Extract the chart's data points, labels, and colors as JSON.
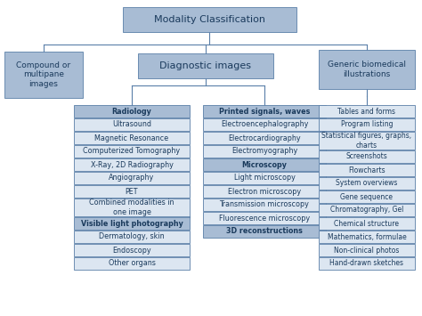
{
  "title": "Modality Classification",
  "background": "#ffffff",
  "box_fill_dark": "#a8bcd4",
  "box_fill_light": "#dce6f1",
  "box_edge": "#5a7fa8",
  "line_color": "#5a7fa8",
  "font_color": "#1a3a5c",
  "categories": [
    "Compound or\nmultipane\nimages",
    "Diagnostic images",
    "Generic biomedical\nillustrations"
  ],
  "diag_left_header": "Radiology",
  "diag_left_items": [
    "Ultrasound",
    "Magnetic Resonance",
    "Computerized Tomography",
    "X-Ray, 2D Radiography",
    "Angiography",
    "PET",
    "Combined modalities in\none image"
  ],
  "diag_left_header2": "Visible light photography",
  "diag_left_items2": [
    "Dermatology, skin",
    "Endoscopy",
    "Other organs"
  ],
  "diag_right_header1": "Printed signals, waves",
  "diag_right_items1": [
    "Electroencephalography",
    "Electrocardiography",
    "Electromyography"
  ],
  "diag_right_header2": "Microscopy",
  "diag_right_items2": [
    "Light microscopy",
    "Electron microscopy",
    "Transmission microscopy",
    "Fluorescence microscopy"
  ],
  "diag_right_header3": "3D reconstructions",
  "generic_items": [
    "Tables and forms",
    "Program listing",
    "Statistical figures, graphs,\ncharts",
    "Screenshots",
    "Flowcharts",
    "System overviews",
    "Gene sequence",
    "Chromatography, Gel",
    "Chemical structure",
    "Mathematics, formulae",
    "Non-clinical photos",
    "Hand-drawn sketches"
  ]
}
